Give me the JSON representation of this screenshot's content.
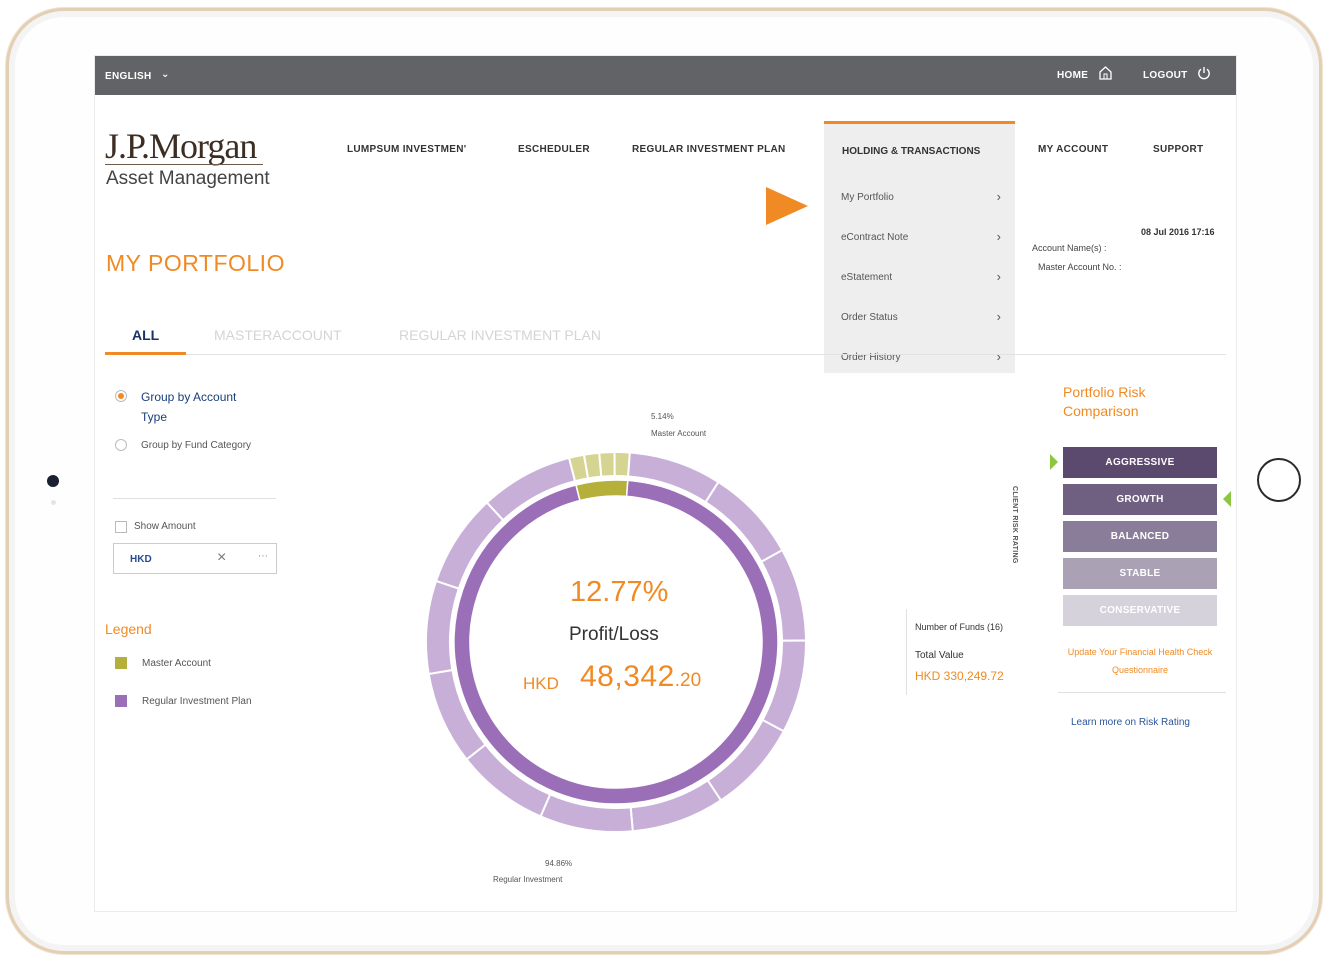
{
  "topbar": {
    "language": "ENGLISH",
    "home": "HOME",
    "logout": "LOGOUT"
  },
  "logo": {
    "line1": "J.P.Morgan",
    "line2": "Asset Management"
  },
  "nav": {
    "items": [
      "LUMPSUM INVESTMEN'",
      "ESCHEDULER",
      "REGULAR INVESTMENT PLAN",
      "HOLDING & TRANSACTIONS",
      "MY ACCOUNT",
      "SUPPORT"
    ],
    "active_index": 3,
    "dropdown": [
      "My Portfolio",
      "eContract Note",
      "eStatement",
      "Order Status",
      "Order History"
    ]
  },
  "page": {
    "title": "MY PORTFOLIO",
    "datetime": "08 Jul 2016 17:16",
    "account_name": "Account Name(s) :",
    "master_account": "Master Account No. :"
  },
  "tabs": [
    "ALL",
    "MASTERACCOUNT",
    "REGULAR INVESTMENT PLAN"
  ],
  "sidebar": {
    "group_options": [
      {
        "label": "Group by Account Type",
        "selected": true
      },
      {
        "label": "Group by Fund Category",
        "selected": false
      }
    ],
    "show_amount": "Show Amount",
    "show_amount_checked": false,
    "currency": "HKD"
  },
  "legend": {
    "title": "Legend",
    "items": [
      {
        "label": "Master Account",
        "color": "#b5b03a"
      },
      {
        "label": "Regular Investment Plan",
        "color": "#9b6eb8"
      }
    ]
  },
  "chart_data": {
    "type": "pie",
    "style": "donut",
    "slices": [
      {
        "label": "Master Account",
        "percent": 5.14,
        "color": "#b5b03a"
      },
      {
        "label": "Regular Investment",
        "percent": 94.86,
        "color": "#9b6eb8"
      }
    ],
    "top_label_pct": "5.14%",
    "top_label": "Master Account",
    "bottom_label_pct": "94.86%",
    "bottom_label": "Regular Investment",
    "center_pct": "12.77%",
    "center_label": "Profit/Loss",
    "center_currency": "HKD",
    "center_amount": "48,342",
    "center_decimals": ".20"
  },
  "summary": {
    "num_funds": "Number of Funds (16)",
    "total_value_label": "Total Value",
    "total_value": "HKD 330,249.72"
  },
  "risk": {
    "title": "Portfolio Risk Comparison",
    "client_rating_label": "CLIENT RISK RATING",
    "levels": [
      {
        "label": "AGGRESSIVE",
        "color": "#5b4a6e"
      },
      {
        "label": "GROWTH",
        "color": "#6f5f81"
      },
      {
        "label": "BALANCED",
        "color": "#8a7d99"
      },
      {
        "label": "STABLE",
        "color": "#aaa1b5"
      },
      {
        "label": "CONSERVATIVE",
        "color": "#d6d2dc"
      }
    ],
    "client_level": "AGGRESSIVE",
    "portfolio_level": "GROWTH",
    "update_link": "Update Your Financial Health Check Questionnaire",
    "learn_link": "Learn more on Risk Rating"
  },
  "colors": {
    "accent": "#f08a24",
    "topbar": "#616366",
    "navy": "#1a3366"
  }
}
